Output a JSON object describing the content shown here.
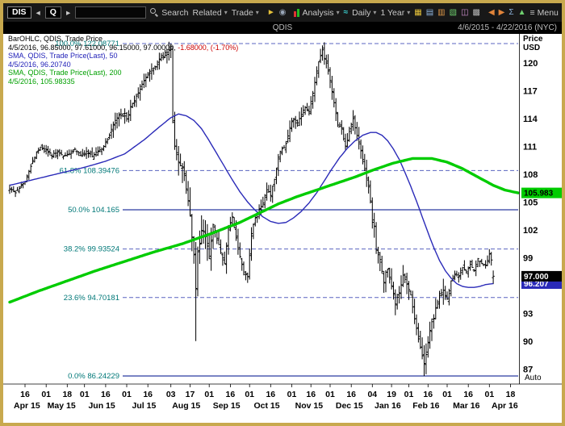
{
  "colors": {
    "window_border": "#c8a94e",
    "toolbar_bg": "#181818",
    "bar": "#000000",
    "sma50": "#2a2ab8",
    "sma200": "#00cc00",
    "fib_label": "#007878",
    "fib_line": "#5a64c0",
    "fib_solid": "#2a3aa0",
    "negative": "#cc0000",
    "badge_last_bg": "#000000"
  },
  "icons": {
    "caret_down": "▾",
    "back": "◂",
    "forward": "▸",
    "menu": "≡",
    "pointer": "►",
    "snapshot": "◉",
    "wave": "≈",
    "grid": "▦",
    "line_chart": "▤",
    "candles": "▥",
    "area": "▧",
    "compare": "◫",
    "layers": "▩",
    "pan_left": "◀",
    "pan_right": "▶",
    "sigma": "Σ",
    "alert": "▲"
  },
  "toolbar": {
    "symbol_chip": "DIS",
    "quote_button": "Q",
    "search_value": "",
    "search_label": "Search",
    "related_label": "Related",
    "trade_label": "Trade",
    "analysis_label": "Analysis",
    "interval_label": "Daily",
    "range_label": "1 Year",
    "menu_label": "Menu"
  },
  "titlebar": {
    "title": "QDIS",
    "date_range": "4/6/2015 - 4/22/2016 (NYC)"
  },
  "legend": {
    "line1": "BarOHLC, QDIS, Trade Price",
    "line2_values": "4/5/2016, 96.85000, 97.61000, 96.15000, 97.00000, ",
    "line2_change": "-1.68000, (-1.70%)",
    "line3": "SMA, QDIS, Trade Price(Last), 50",
    "line4": "4/5/2016, 96.20740",
    "line5": "SMA, QDIS, Trade Price(Last), 200",
    "line6": "4/5/2016, 105.98335"
  },
  "axis": {
    "price_label_line1": "Price",
    "price_label_line2": "USD",
    "auto_label": "Auto"
  },
  "badges": {
    "sma200": {
      "value": "105.983",
      "bg": "#00cc00",
      "fg": "#000000"
    },
    "last": {
      "value": "97.000",
      "bg": "#000000",
      "fg": "#ffffff"
    },
    "sma50": {
      "value": "96.207",
      "bg": "#2a2ab8",
      "fg": "#ffffff"
    }
  },
  "chart_data": {
    "type": "ohlc-bar",
    "title": "QDIS Trade Price, Daily, with 50/200-day SMA and Fibonacci retracement",
    "instrument": "QDIS",
    "interval": "Daily",
    "range": "1 Year",
    "x_domain": "4/6/2015 - 4/22/2016",
    "days_total": 265,
    "last_bar_day": 252,
    "ylim": [
      86.0,
      123.5
    ],
    "y_ticks": [
      120,
      117,
      114,
      111,
      108,
      105,
      102,
      99,
      96,
      93,
      90,
      87
    ],
    "fib_levels": [
      {
        "pct": "100.0%",
        "value": 122.08771,
        "label": "100.0%  122.08771",
        "dashed": true
      },
      {
        "pct": "61.8%",
        "value": 108.39476,
        "label": "61.8%  108.39476",
        "dashed": true
      },
      {
        "pct": "50.0%",
        "value": 104.165,
        "label": "50.0%  104.165",
        "dashed": false
      },
      {
        "pct": "38.2%",
        "value": 99.93524,
        "label": "38.2%  99.93524",
        "dashed": true
      },
      {
        "pct": "23.6%",
        "value": 94.70181,
        "label": "23.6%  94.70181",
        "dashed": true
      },
      {
        "pct": "0.0%",
        "value": 86.24229,
        "label": "0.0%  86.24229",
        "dashed": false
      }
    ],
    "last_bar": {
      "date": "4/5/2016",
      "open": 96.85,
      "high": 97.61,
      "low": 96.15,
      "close": 97.0,
      "change": -1.68,
      "change_pct": -1.7
    },
    "sma50_last": 96.2074,
    "sma200_last": 105.98335,
    "close_anchors": [
      [
        0,
        106.5
      ],
      [
        3,
        106.0
      ],
      [
        6,
        106.8
      ],
      [
        8,
        107.3
      ],
      [
        11,
        108.9
      ],
      [
        14,
        110.4
      ],
      [
        16,
        110.9
      ],
      [
        19,
        110.6
      ],
      [
        22,
        110.0
      ],
      [
        25,
        110.5
      ],
      [
        28,
        109.9
      ],
      [
        31,
        110.2
      ],
      [
        34,
        110.6
      ],
      [
        37,
        110.1
      ],
      [
        40,
        110.4
      ],
      [
        43,
        110.0
      ],
      [
        46,
        110.5
      ],
      [
        49,
        110.9
      ],
      [
        52,
        112.2
      ],
      [
        55,
        113.8
      ],
      [
        58,
        114.4
      ],
      [
        61,
        114.0
      ],
      [
        64,
        115.7
      ],
      [
        67,
        116.9
      ],
      [
        70,
        118.2
      ],
      [
        73,
        119.1
      ],
      [
        76,
        119.7
      ],
      [
        79,
        120.6
      ],
      [
        82,
        121.2
      ],
      [
        84,
        121.7
      ],
      [
        85,
        113.5
      ],
      [
        86,
        110.9
      ],
      [
        88,
        109.4
      ],
      [
        90,
        108.9
      ],
      [
        92,
        106.6
      ],
      [
        94,
        103.4
      ],
      [
        96,
        99.0
      ],
      [
        97,
        95.8
      ],
      [
        98,
        99.4
      ],
      [
        100,
        102.2
      ],
      [
        102,
        101.4
      ],
      [
        104,
        99.2
      ],
      [
        106,
        102.4
      ],
      [
        108,
        101.3
      ],
      [
        110,
        99.6
      ],
      [
        112,
        98.3
      ],
      [
        114,
        102.0
      ],
      [
        116,
        103.2
      ],
      [
        118,
        101.1
      ],
      [
        120,
        98.9
      ],
      [
        122,
        97.3
      ],
      [
        124,
        96.9
      ],
      [
        126,
        101.7
      ],
      [
        128,
        103.3
      ],
      [
        130,
        104.1
      ],
      [
        132,
        104.9
      ],
      [
        134,
        106.3
      ],
      [
        136,
        105.7
      ],
      [
        138,
        107.5
      ],
      [
        140,
        109.9
      ],
      [
        142,
        110.7
      ],
      [
        144,
        111.3
      ],
      [
        146,
        113.1
      ],
      [
        148,
        114.0
      ],
      [
        150,
        113.4
      ],
      [
        152,
        114.4
      ],
      [
        154,
        115.3
      ],
      [
        156,
        114.7
      ],
      [
        158,
        116.9
      ],
      [
        160,
        119.2
      ],
      [
        162,
        120.8
      ],
      [
        163,
        121.3
      ],
      [
        165,
        119.9
      ],
      [
        167,
        118.1
      ],
      [
        169,
        115.6
      ],
      [
        171,
        113.3
      ],
      [
        173,
        112.9
      ],
      [
        175,
        111.0
      ],
      [
        177,
        112.6
      ],
      [
        179,
        114.1
      ],
      [
        181,
        112.1
      ],
      [
        183,
        110.6
      ],
      [
        185,
        108.3
      ],
      [
        187,
        106.5
      ],
      [
        188,
        105.2
      ],
      [
        189,
        102.9
      ],
      [
        190,
        102.3
      ],
      [
        191,
        99.7
      ],
      [
        193,
        99.0
      ],
      [
        195,
        96.5
      ],
      [
        197,
        97.9
      ],
      [
        199,
        95.9
      ],
      [
        201,
        94.0
      ],
      [
        203,
        95.3
      ],
      [
        205,
        96.9
      ],
      [
        207,
        96.0
      ],
      [
        209,
        94.9
      ],
      [
        211,
        92.4
      ],
      [
        213,
        90.2
      ],
      [
        214,
        89.4
      ],
      [
        215,
        88.6
      ],
      [
        216,
        87.4
      ],
      [
        218,
        90.0
      ],
      [
        220,
        91.9
      ],
      [
        222,
        93.5
      ],
      [
        224,
        95.0
      ],
      [
        226,
        95.3
      ],
      [
        228,
        94.6
      ],
      [
        230,
        96.4
      ],
      [
        232,
        97.2
      ],
      [
        234,
        96.9
      ],
      [
        236,
        98.0
      ],
      [
        238,
        97.5
      ],
      [
        240,
        98.4
      ],
      [
        242,
        97.7
      ],
      [
        244,
        99.0
      ],
      [
        246,
        98.4
      ],
      [
        248,
        98.2
      ],
      [
        250,
        99.4
      ],
      [
        251,
        98.8
      ],
      [
        252,
        97.0
      ]
    ],
    "sma50_anchors": [
      [
        0,
        106.8
      ],
      [
        10,
        107.3
      ],
      [
        20,
        107.8
      ],
      [
        30,
        108.3
      ],
      [
        40,
        108.8
      ],
      [
        50,
        109.4
      ],
      [
        60,
        110.2
      ],
      [
        70,
        111.7
      ],
      [
        78,
        113.1
      ],
      [
        84,
        114.1
      ],
      [
        88,
        114.5
      ],
      [
        92,
        114.3
      ],
      [
        96,
        113.8
      ],
      [
        100,
        112.9
      ],
      [
        104,
        111.6
      ],
      [
        108,
        110.2
      ],
      [
        112,
        108.8
      ],
      [
        116,
        107.4
      ],
      [
        120,
        106.1
      ],
      [
        124,
        105.0
      ],
      [
        128,
        104.1
      ],
      [
        132,
        103.4
      ],
      [
        136,
        102.9
      ],
      [
        140,
        102.7
      ],
      [
        144,
        102.8
      ],
      [
        148,
        103.3
      ],
      [
        152,
        104.0
      ],
      [
        156,
        104.9
      ],
      [
        160,
        106.0
      ],
      [
        164,
        107.3
      ],
      [
        168,
        108.6
      ],
      [
        172,
        109.8
      ],
      [
        176,
        110.8
      ],
      [
        180,
        111.6
      ],
      [
        184,
        112.2
      ],
      [
        188,
        112.5
      ],
      [
        191,
        112.5
      ],
      [
        194,
        112.2
      ],
      [
        197,
        111.6
      ],
      [
        200,
        110.7
      ],
      [
        203,
        109.6
      ],
      [
        206,
        108.2
      ],
      [
        209,
        106.7
      ],
      [
        212,
        105.1
      ],
      [
        215,
        103.4
      ],
      [
        218,
        101.7
      ],
      [
        221,
        100.1
      ],
      [
        224,
        98.7
      ],
      [
        227,
        97.6
      ],
      [
        230,
        96.8
      ],
      [
        233,
        96.2
      ],
      [
        236,
        95.9
      ],
      [
        239,
        95.8
      ],
      [
        242,
        95.8
      ],
      [
        245,
        95.9
      ],
      [
        248,
        96.1
      ],
      [
        252,
        96.21
      ]
    ],
    "sma200_anchors": [
      [
        0,
        94.2
      ],
      [
        15,
        95.4
      ],
      [
        30,
        96.5
      ],
      [
        45,
        97.6
      ],
      [
        60,
        98.6
      ],
      [
        75,
        99.6
      ],
      [
        90,
        100.5
      ],
      [
        105,
        101.6
      ],
      [
        120,
        102.8
      ],
      [
        130,
        103.8
      ],
      [
        140,
        104.8
      ],
      [
        150,
        105.6
      ],
      [
        160,
        106.3
      ],
      [
        170,
        107.0
      ],
      [
        180,
        107.7
      ],
      [
        190,
        108.5
      ],
      [
        200,
        109.2
      ],
      [
        210,
        109.7
      ],
      [
        220,
        109.7
      ],
      [
        228,
        109.3
      ],
      [
        236,
        108.6
      ],
      [
        244,
        107.7
      ],
      [
        252,
        106.8
      ],
      [
        258,
        106.3
      ],
      [
        265,
        105.98
      ]
    ],
    "volatility_windows": [
      [
        0,
        52,
        0.55
      ],
      [
        53,
        84,
        0.9
      ],
      [
        85,
        105,
        1.7
      ],
      [
        106,
        125,
        1.05
      ],
      [
        126,
        166,
        0.8
      ],
      [
        167,
        188,
        0.95
      ],
      [
        189,
        226,
        1.25
      ],
      [
        227,
        252,
        0.6
      ]
    ],
    "special_bars": {
      "84": {
        "h": 122.08771
      },
      "97": {
        "l": 90.0
      },
      "163": {
        "h": 121.9
      },
      "216": {
        "l": 86.24229
      },
      "252": {
        "o": 96.85,
        "h": 97.61,
        "l": 96.15,
        "c": 97.0
      }
    },
    "x_day_ticks": [
      [
        8,
        "16"
      ],
      [
        19,
        "01"
      ],
      [
        30,
        "18"
      ],
      [
        39,
        "01"
      ],
      [
        50,
        "16"
      ],
      [
        61,
        "01"
      ],
      [
        72,
        "16"
      ],
      [
        84,
        "03"
      ],
      [
        94,
        "17"
      ],
      [
        104,
        "01"
      ],
      [
        115,
        "16"
      ],
      [
        125,
        "01"
      ],
      [
        136,
        "16"
      ],
      [
        147,
        "01"
      ],
      [
        157,
        "16"
      ],
      [
        167,
        "01"
      ],
      [
        178,
        "16"
      ],
      [
        189,
        "04"
      ],
      [
        199,
        "19"
      ],
      [
        208,
        "01"
      ],
      [
        218,
        "16"
      ],
      [
        228,
        "01"
      ],
      [
        239,
        "16"
      ],
      [
        250,
        "01"
      ],
      [
        261,
        "18"
      ]
    ],
    "x_month_labels": [
      [
        9,
        "Apr 15"
      ],
      [
        27,
        "May 15"
      ],
      [
        48,
        "Jun 15"
      ],
      [
        70,
        "Jul 15"
      ],
      [
        92,
        "Aug 15"
      ],
      [
        113,
        "Sep 15"
      ],
      [
        134,
        "Oct 15"
      ],
      [
        156,
        "Nov 15"
      ],
      [
        177,
        "Dec 15"
      ],
      [
        197,
        "Jan 16"
      ],
      [
        217,
        "Feb 16"
      ],
      [
        238,
        "Mar 16"
      ],
      [
        258,
        "Apr 16"
      ]
    ]
  }
}
